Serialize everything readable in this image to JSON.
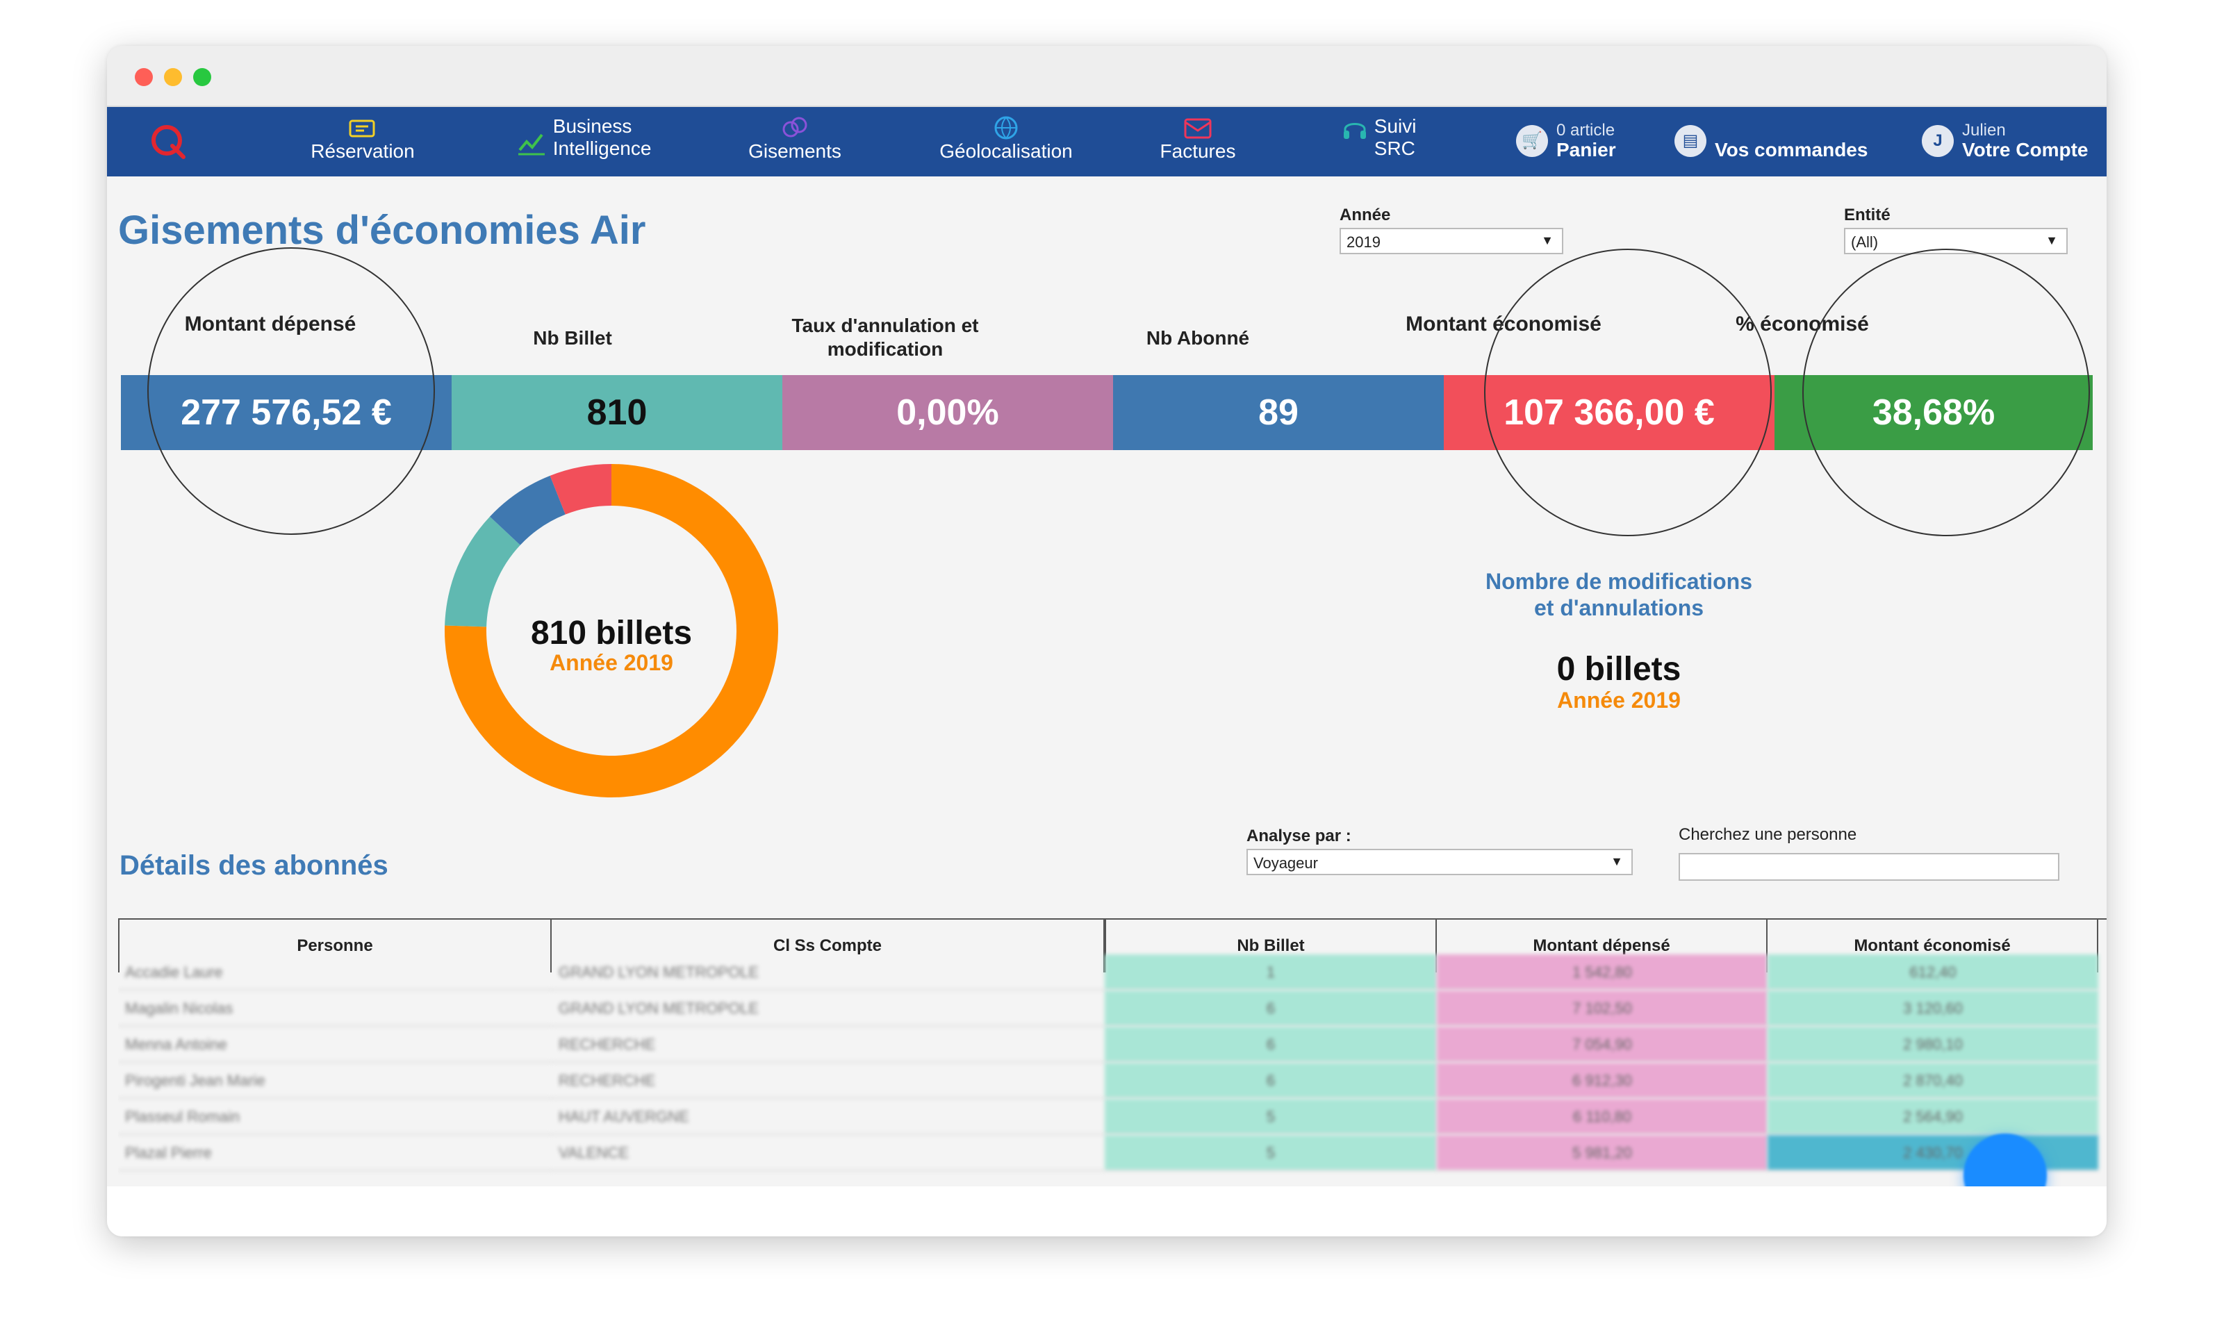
{
  "nav": {
    "items": [
      {
        "line1": "",
        "line2": "Réservation",
        "icon": "reservation-icon"
      },
      {
        "line1": "Business",
        "line2": "Intelligence",
        "icon": "chart-icon"
      },
      {
        "line1": "",
        "line2": "Gisements",
        "icon": "gisements-icon"
      },
      {
        "line1": "",
        "line2": "Géolocalisation",
        "icon": "globe-icon"
      },
      {
        "line1": "",
        "line2": "Factures",
        "icon": "invoice-icon"
      },
      {
        "line1": "Suivi",
        "line2": "SRC",
        "icon": "headset-icon"
      }
    ],
    "cart": {
      "count_label": "0 article",
      "label": "Panier"
    },
    "orders": {
      "label": "Vos commandes"
    },
    "account": {
      "initial": "J",
      "user": "Julien",
      "label": "Votre Compte"
    }
  },
  "page": {
    "title": "Gisements d'économies Air"
  },
  "filters": {
    "year": {
      "label": "Année",
      "value": "2019"
    },
    "entity": {
      "label": "Entité",
      "value": "(All)"
    }
  },
  "kpis": [
    {
      "label": "Montant dépensé",
      "value": "277 576,52 €",
      "color": "#3f78b0"
    },
    {
      "label": "Nb Billet",
      "value": "810",
      "color": "#60b9b1"
    },
    {
      "label": "Taux d'annulation et",
      "label2": "modification",
      "value": "0,00%",
      "color": "#b87aa5"
    },
    {
      "label": "Nb Abonné",
      "value": "89",
      "color": "#3f78b0"
    },
    {
      "label": "Montant économisé",
      "value": "107 366,00 €",
      "color": "#f24f5a"
    },
    {
      "label": "% économisé",
      "value": "38,68%",
      "color": "#3a9d45"
    }
  ],
  "donut": {
    "main": "810 billets",
    "sub": "Année 2019",
    "segments": [
      {
        "share": 0.755,
        "color": "#ff8c00"
      },
      {
        "share": 0.115,
        "color": "#60b9b1"
      },
      {
        "share": 0.07,
        "color": "#3f78b0"
      },
      {
        "share": 0.06,
        "color": "#f24f5a"
      }
    ]
  },
  "modifications": {
    "title1": "Nombre de modifications",
    "title2": "et d'annulations",
    "value": "0 billets",
    "sub": "Année 2019"
  },
  "details": {
    "title": "Détails des abonnés",
    "analyse_label": "Analyse par :",
    "analyse_value": "Voyageur",
    "search_label": "Cherchez une personne",
    "search_value": "",
    "columns": [
      "Personne",
      "Cl Ss Compte",
      "Nb Billet",
      "Montant dépensé",
      "Montant économisé"
    ],
    "rows": [
      [
        "Accadie Laure",
        "GRAND LYON METROPOLE",
        "1",
        "1 542,80",
        "612,40"
      ],
      [
        "Magalin Nicolas",
        "GRAND LYON METROPOLE",
        "6",
        "7 102,50",
        "3 120,60"
      ],
      [
        "Menna Antoine",
        "RECHERCHE",
        "6",
        "7 054,90",
        "2 980,10"
      ],
      [
        "Pirogenti Jean Marie",
        "RECHERCHE",
        "6",
        "6 912,30",
        "2 870,40"
      ],
      [
        "Plasseul Romain",
        "HAUT AUVERGNE",
        "5",
        "6 110,80",
        "2 564,90"
      ],
      [
        "Plazal Pierre",
        "VALENCE",
        "5",
        "5 981,20",
        "2 430,70"
      ]
    ]
  }
}
